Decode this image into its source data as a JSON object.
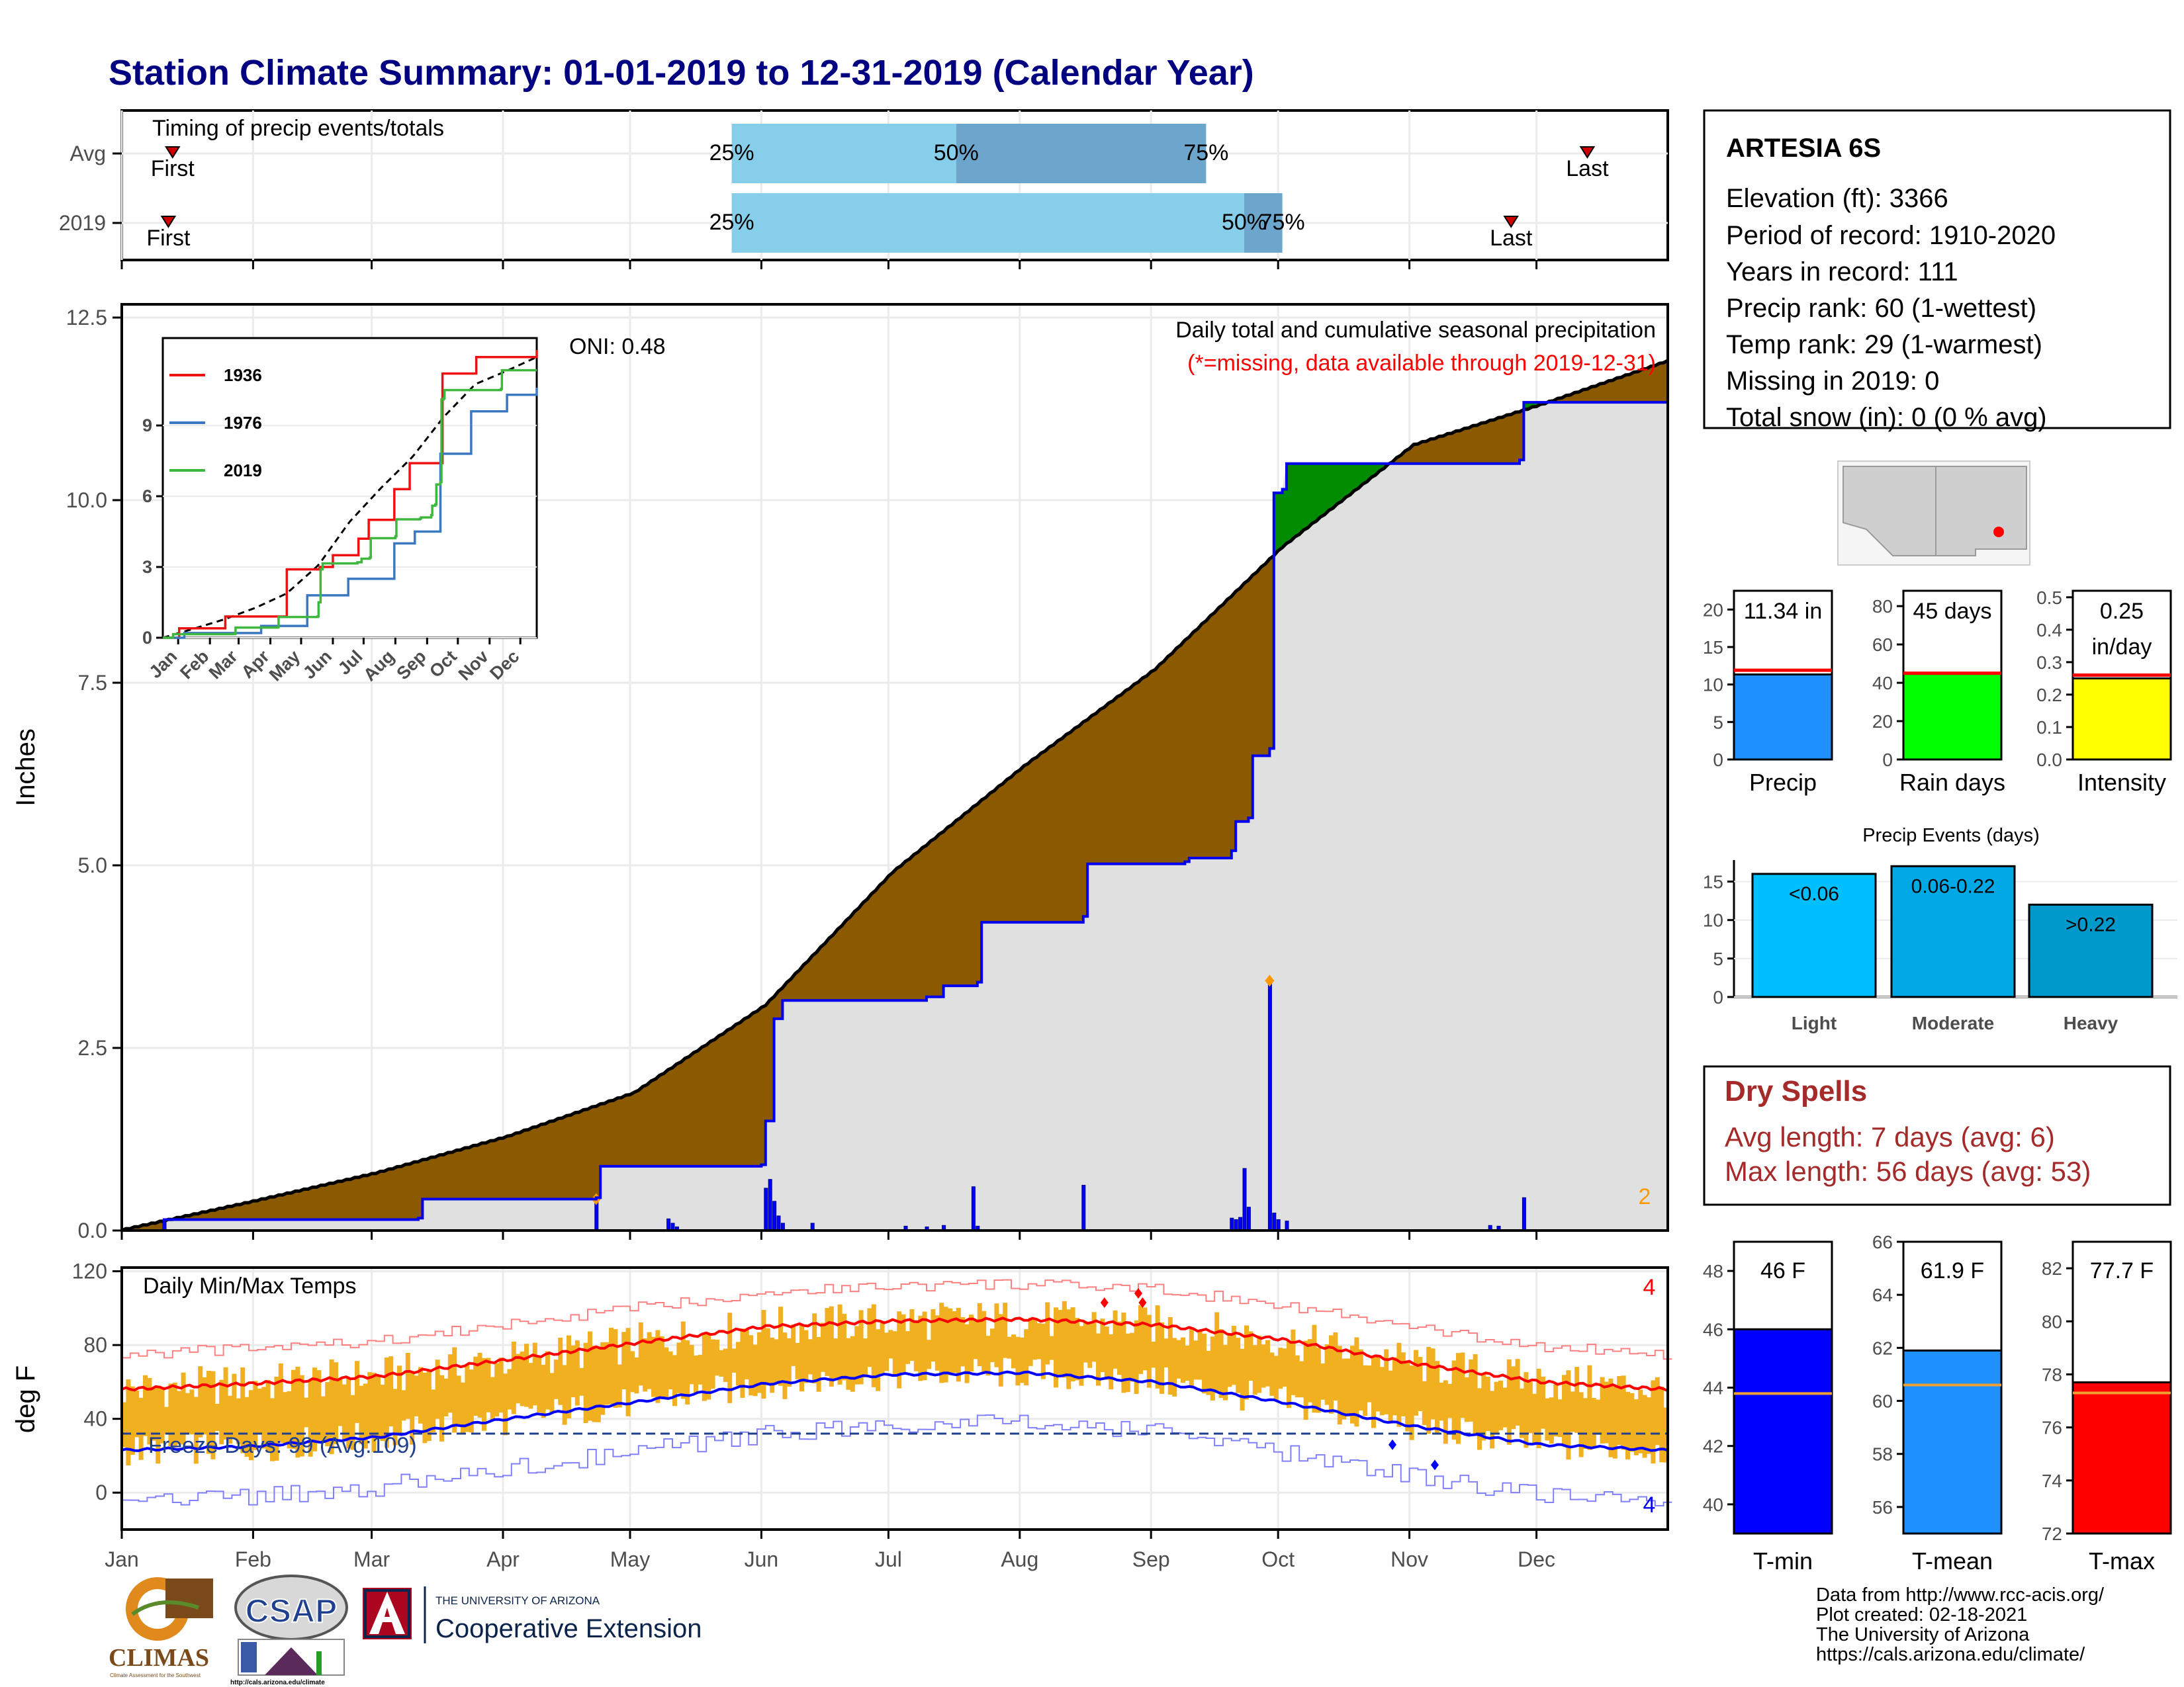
{
  "title": "Station Climate Summary: 01-01-2019 to 12-31-2019 (Calendar Year)",
  "timing": {
    "label": "Timing of precip events/totals",
    "rows": [
      {
        "name": "Avg",
        "first_label": "First",
        "last_label": "Last",
        "first_doy": 12,
        "last_doy": 346,
        "p25_doy": 144,
        "p50_doy": 197,
        "p75_doy": 256,
        "p25_label": "25%",
        "p50_label": "50%",
        "p75_label": "75%"
      },
      {
        "name": "2019",
        "first_label": "First",
        "last_label": "Last",
        "first_doy": 11,
        "last_doy": 328,
        "p25_doy": 144,
        "p50_doy": 265,
        "p75_doy": 274,
        "p25_label": "25%",
        "p50_label": "50%",
        "p75_label": "75%"
      }
    ],
    "colors": {
      "light": "#87ceeb",
      "dark": "#6ca6cd",
      "marker": "#cc0000"
    }
  },
  "precip_panel": {
    "ylabel": "Inches",
    "ylim": [
      0,
      12.5
    ],
    "yticks": [
      "0.0",
      "2.5",
      "5.0",
      "7.5",
      "10.0",
      "12.5"
    ],
    "header_line1": "Daily total and cumulative seasonal precipitation",
    "header_line2": "(*=missing, data available through 2019-12-31)",
    "oni": "ONI: 0.48",
    "corner_count": "2",
    "colors": {
      "deficit": "#8b5a00",
      "surplus": "#008b00",
      "observed": "#0000ee",
      "normal": "#000000",
      "fill": "#e0e0e0",
      "missing_note": "#ff0000",
      "count": "#ff9900"
    }
  },
  "inset": {
    "yticks": [
      "0",
      "3",
      "6",
      "9"
    ],
    "xticks": [
      "Jan",
      "Feb",
      "Mar",
      "Apr",
      "May",
      "Jun",
      "Jul",
      "Aug",
      "Sep",
      "Oct",
      "Nov",
      "Dec"
    ],
    "legend": [
      {
        "name": "1936",
        "color": "#ee1111"
      },
      {
        "name": "1976",
        "color": "#3a78c2"
      },
      {
        "name": "2019",
        "color": "#3fb73f"
      }
    ]
  },
  "temp_panel": {
    "ylabel": "deg F",
    "label": "Daily Min/Max Temps",
    "freeze": "Freeze Days: 99 (Avg:109)",
    "yticks": [
      "0",
      "40",
      "80",
      "120"
    ],
    "ylim": [
      -20,
      122
    ],
    "count_top": "4",
    "count_bottom": "4",
    "colors": {
      "range": "#f0b020",
      "max": "#ff0000",
      "min": "#0000ff"
    }
  },
  "months": [
    "Jan",
    "Feb",
    "Mar",
    "Apr",
    "May",
    "Jun",
    "Jul",
    "Aug",
    "Sep",
    "Oct",
    "Nov",
    "Dec"
  ],
  "station": {
    "name": "ARTESIA 6S",
    "lines": [
      "Elevation (ft): 3366",
      "Period of record: 1910-2020",
      "Years in record: 111",
      "Precip rank: 60 (1-wettest)",
      "Temp rank: 29 (1-warmest)",
      "Missing in 2019: 0",
      "Total snow (in): 0 (0 % avg)"
    ]
  },
  "summary_bars": [
    {
      "name": "Precip",
      "value": 11.34,
      "avg": 11.9,
      "label_lines": [
        "11.34 in"
      ],
      "yticks": [
        "0",
        "5",
        "10",
        "15",
        "20"
      ],
      "ymax": 22.5,
      "color": "#1e90ff"
    },
    {
      "name": "Rain days",
      "value": 45,
      "avg": 45,
      "label_lines": [
        "45 days"
      ],
      "yticks": [
        "0",
        "20",
        "40",
        "60",
        "80"
      ],
      "ymax": 88,
      "color": "#00ff00"
    },
    {
      "name": "Intensity",
      "value": 0.25,
      "avg": 0.26,
      "label_lines": [
        "0.25",
        "in/day"
      ],
      "yticks": [
        "0.0",
        "0.1",
        "0.2",
        "0.3",
        "0.4",
        "0.5"
      ],
      "ymax": 0.52,
      "color": "#ffff00"
    }
  ],
  "precip_events": {
    "title": "Precip Events (days)",
    "yticks": [
      "0",
      "5",
      "10",
      "15"
    ],
    "bars": [
      {
        "name": "Light",
        "label": "<0.06",
        "value": 16,
        "color": "#00bfff"
      },
      {
        "name": "Moderate",
        "label": "0.06-0.22",
        "value": 17,
        "color": "#00a9e6"
      },
      {
        "name": "Heavy",
        "label": ">0.22",
        "value": 12,
        "color": "#0099cc"
      }
    ]
  },
  "dry_spells": {
    "title": "Dry Spells",
    "lines": [
      "Avg length: 7 days (avg: 6)",
      "Max length: 56 days (avg: 53)"
    ],
    "color": "#a52a2a"
  },
  "temp_bars": [
    {
      "name": "T-min",
      "label": "46 F",
      "value": 46,
      "avg": 43.8,
      "yticks": [
        "40",
        "42",
        "44",
        "46",
        "48"
      ],
      "ymin": 39,
      "ymax": 49,
      "color": "#0000ff"
    },
    {
      "name": "T-mean",
      "label": "61.9 F",
      "value": 61.9,
      "avg": 60.6,
      "yticks": [
        "56",
        "58",
        "60",
        "62",
        "64",
        "66"
      ],
      "ymin": 55,
      "ymax": 66,
      "color": "#1e90ff"
    },
    {
      "name": "T-max",
      "label": "77.7 F",
      "value": 77.7,
      "avg": 77.3,
      "yticks": [
        "72",
        "74",
        "76",
        "78",
        "80",
        "82"
      ],
      "ymin": 72,
      "ymax": 83,
      "color": "#ff0000"
    }
  ],
  "credits": [
    "Data from http://www.rcc-acis.org/",
    "Plot created: 02-18-2021",
    "The University of Arizona",
    "https://cals.arizona.edu/climate/"
  ],
  "logos": {
    "climas": "CLIMAS",
    "climas_sub": "Climate Assessment for the Southwest",
    "csap": "CSAP",
    "csap_url": "http://cals.arizona.edu/climate",
    "ua_top": "THE UNIVERSITY OF ARIZONA",
    "ua_bottom": "Cooperative Extension"
  },
  "chart_data": [
    {
      "type": "line",
      "title": "Daily total and cumulative seasonal precipitation",
      "ylabel": "Inches",
      "ylim": [
        0,
        12.5
      ],
      "x_months": [
        "Jan",
        "Feb",
        "Mar",
        "Apr",
        "May",
        "Jun",
        "Jul",
        "Aug",
        "Sep",
        "Oct",
        "Nov",
        "Dec"
      ],
      "series": [
        {
          "name": "normal",
          "x_doy": [
            0,
            30,
            60,
            91,
            121,
            152,
            182,
            213,
            244,
            274,
            305,
            335,
            365
          ],
          "values": [
            0.0,
            0.38,
            0.78,
            1.28,
            1.88,
            3.08,
            4.9,
            6.35,
            7.68,
            9.35,
            10.75,
            11.3,
            11.9
          ]
        },
        {
          "name": "2019",
          "x_doy": [
            0,
            8,
            10,
            70,
            71,
            112,
            113,
            151,
            152,
            154,
            156,
            190,
            194,
            202,
            203,
            227,
            228,
            251,
            252,
            262,
            263,
            266,
            267,
            271,
            272,
            274,
            275,
            330,
            331,
            365
          ],
          "values": [
            0.0,
            0.0,
            0.15,
            0.17,
            0.43,
            0.45,
            0.88,
            0.9,
            1.5,
            2.9,
            3.15,
            3.2,
            3.35,
            3.4,
            4.22,
            4.3,
            5.02,
            5.05,
            5.1,
            5.2,
            5.6,
            5.65,
            6.5,
            6.6,
            10.1,
            10.15,
            10.5,
            10.55,
            11.34,
            11.34
          ]
        }
      ],
      "daily_bars": {
        "x_doy": [
          10,
          112,
          129,
          130,
          131,
          152,
          153,
          154,
          155,
          156,
          163,
          185,
          190,
          194,
          201,
          202,
          227,
          262,
          263,
          264,
          265,
          266,
          271,
          272,
          273,
          275,
          323,
          325,
          331
        ],
        "values": [
          0.15,
          0.43,
          0.16,
          0.1,
          0.05,
          0.58,
          0.7,
          0.4,
          0.2,
          0.1,
          0.1,
          0.06,
          0.05,
          0.07,
          0.6,
          0.06,
          0.62,
          0.17,
          0.15,
          0.18,
          0.85,
          0.32,
          3.42,
          0.24,
          0.15,
          0.13,
          0.07,
          0.06,
          0.45
        ]
      }
    },
    {
      "type": "line",
      "title": "Daily Min/Max Temps",
      "ylabel": "deg F",
      "x_months": [
        "Jan",
        "Feb",
        "Mar",
        "Apr",
        "May",
        "Jun",
        "Jul",
        "Aug",
        "Sep",
        "Oct",
        "Nov",
        "Dec"
      ],
      "series": [
        {
          "name": "Avg max",
          "x_doy": [
            0,
            30,
            60,
            91,
            121,
            152,
            182,
            213,
            244,
            274,
            305,
            335,
            365
          ],
          "values": [
            56,
            59,
            63,
            72,
            81,
            90,
            93,
            94,
            91,
            83,
            70,
            60,
            56
          ]
        },
        {
          "name": "Avg min",
          "x_doy": [
            0,
            30,
            60,
            91,
            121,
            152,
            182,
            213,
            244,
            274,
            305,
            335,
            365
          ],
          "values": [
            23,
            25,
            30,
            40,
            49,
            59,
            64,
            65,
            60,
            49,
            36,
            26,
            23
          ]
        }
      ],
      "freeze_line": 32
    }
  ]
}
